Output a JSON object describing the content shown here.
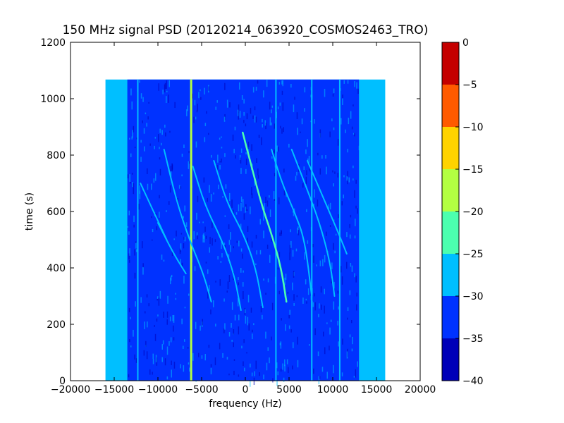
{
  "chart_data": {
    "type": "heatmap",
    "title": "150 MHz signal PSD (20120214_063920_COSMOS2463_TRO)",
    "xlabel": "frequency (Hz)",
    "ylabel": "time (s)",
    "xlim": [
      -20000,
      20000
    ],
    "ylim": [
      0,
      1200
    ],
    "xticks": [
      -20000,
      -15000,
      -10000,
      -5000,
      0,
      5000,
      10000,
      15000,
      20000
    ],
    "xtick_labels": [
      "−20000",
      "−15000",
      "−10000",
      "−5000",
      "0",
      "5000",
      "10000",
      "15000",
      "20000"
    ],
    "yticks": [
      0,
      200,
      400,
      600,
      800,
      1000,
      1200
    ],
    "ytick_labels": [
      "0",
      "200",
      "400",
      "600",
      "800",
      "1000",
      "1200"
    ],
    "data_extent": {
      "x": [
        -16000,
        16000
      ],
      "y": [
        0,
        1068
      ]
    },
    "colorbar": {
      "levels": [
        -40,
        -35,
        -30,
        -25,
        -20,
        -15,
        -10,
        -5,
        0
      ],
      "tick_labels": [
        "−40",
        "−35",
        "−30",
        "−25",
        "−20",
        "−15",
        "−10",
        "−5",
        "0"
      ],
      "colors": [
        "#0000b8",
        "#0032ff",
        "#00bfff",
        "#4cffaf",
        "#b3ff42",
        "#ffd300",
        "#ff5a00",
        "#c40000"
      ]
    },
    "background_level": -32.5,
    "edge_band_level": -27.5,
    "vertical_lines": [
      {
        "freq": -12300,
        "level": -27.5
      },
      {
        "freq": -6200,
        "level": -17.5
      },
      {
        "freq": 3500,
        "level": -27.5
      },
      {
        "freq": 7600,
        "level": -27.5
      },
      {
        "freq": 10800,
        "level": -27.5
      }
    ],
    "doppler_curves": [
      {
        "level": -22.5,
        "points": [
          [
            -300,
            880
          ],
          [
            700,
            760
          ],
          [
            1900,
            620
          ],
          [
            3000,
            520
          ],
          [
            4100,
            400
          ],
          [
            4700,
            280
          ]
        ]
      },
      {
        "level": -27.5,
        "points": [
          [
            -6000,
            760
          ],
          [
            -4600,
            620
          ],
          [
            -2700,
            500
          ],
          [
            -1300,
            380
          ],
          [
            -500,
            250
          ]
        ]
      },
      {
        "level": -27.5,
        "points": [
          [
            -3600,
            780
          ],
          [
            -2100,
            630
          ],
          [
            -200,
            520
          ],
          [
            1200,
            400
          ],
          [
            2000,
            260
          ]
        ]
      },
      {
        "level": -27.5,
        "points": [
          [
            -9300,
            820
          ],
          [
            -7900,
            640
          ],
          [
            -6400,
            500
          ],
          [
            -4800,
            380
          ],
          [
            -3900,
            280
          ]
        ]
      },
      {
        "level": -27.5,
        "points": [
          [
            3000,
            820
          ],
          [
            4200,
            700
          ],
          [
            5600,
            600
          ],
          [
            6800,
            500
          ],
          [
            7600,
            300
          ]
        ]
      },
      {
        "level": -27.5,
        "points": [
          [
            5300,
            820
          ],
          [
            6800,
            700
          ],
          [
            8500,
            560
          ],
          [
            9700,
            420
          ],
          [
            10200,
            300
          ]
        ]
      },
      {
        "level": -27.5,
        "points": [
          [
            7100,
            780
          ],
          [
            8900,
            650
          ],
          [
            10700,
            520
          ],
          [
            11600,
            450
          ]
        ]
      },
      {
        "level": -27.5,
        "points": [
          [
            -10000,
            560
          ],
          [
            -8200,
            450
          ],
          [
            -6800,
            380
          ]
        ]
      },
      {
        "level": -27.5,
        "points": [
          [
            -12000,
            700
          ],
          [
            -10500,
            600
          ],
          [
            -9000,
            500
          ]
        ]
      }
    ]
  }
}
